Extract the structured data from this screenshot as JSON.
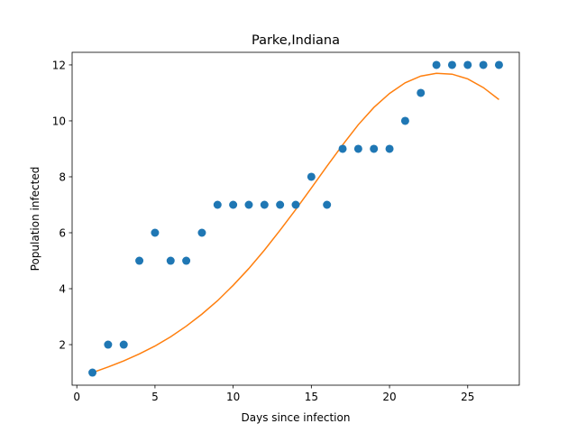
{
  "chart_data": {
    "type": "scatter",
    "title": "Parke,Indiana",
    "xlabel": "Days since infection",
    "ylabel": "Population infected",
    "xlim": [
      -0.3,
      28.3
    ],
    "ylim": [
      0.55,
      12.45
    ],
    "xticks": [
      0,
      5,
      10,
      15,
      20,
      25
    ],
    "yticks": [
      2,
      4,
      6,
      8,
      10,
      12
    ],
    "grid": false,
    "series": [
      {
        "kind": "scatter",
        "color": "#1f77b4",
        "x": [
          1,
          2,
          3,
          4,
          5,
          6,
          7,
          8,
          9,
          10,
          11,
          12,
          13,
          14,
          15,
          16,
          17,
          18,
          19,
          20,
          21,
          22,
          23,
          24,
          25,
          26,
          27
        ],
        "y": [
          1,
          2,
          2,
          5,
          6,
          5,
          5,
          6,
          7,
          7,
          7,
          7,
          7,
          7,
          8,
          7,
          9,
          9,
          9,
          9,
          10,
          11,
          12,
          12,
          12,
          12,
          12
        ]
      },
      {
        "kind": "line",
        "color": "#ff7f0e",
        "x": [
          1,
          2,
          3,
          4,
          5,
          6,
          7,
          8,
          9,
          10,
          11,
          12,
          13,
          14,
          15,
          16,
          17,
          18,
          19,
          20,
          21,
          22,
          23,
          24,
          25,
          26,
          27
        ],
        "y": [
          1.0,
          1.2,
          1.42,
          1.67,
          1.95,
          2.28,
          2.66,
          3.09,
          3.57,
          4.12,
          4.72,
          5.38,
          6.09,
          6.83,
          7.6,
          8.38,
          9.14,
          9.86,
          10.48,
          10.98,
          11.36,
          11.6,
          11.7,
          11.67,
          11.5,
          11.19,
          10.76
        ]
      }
    ]
  }
}
